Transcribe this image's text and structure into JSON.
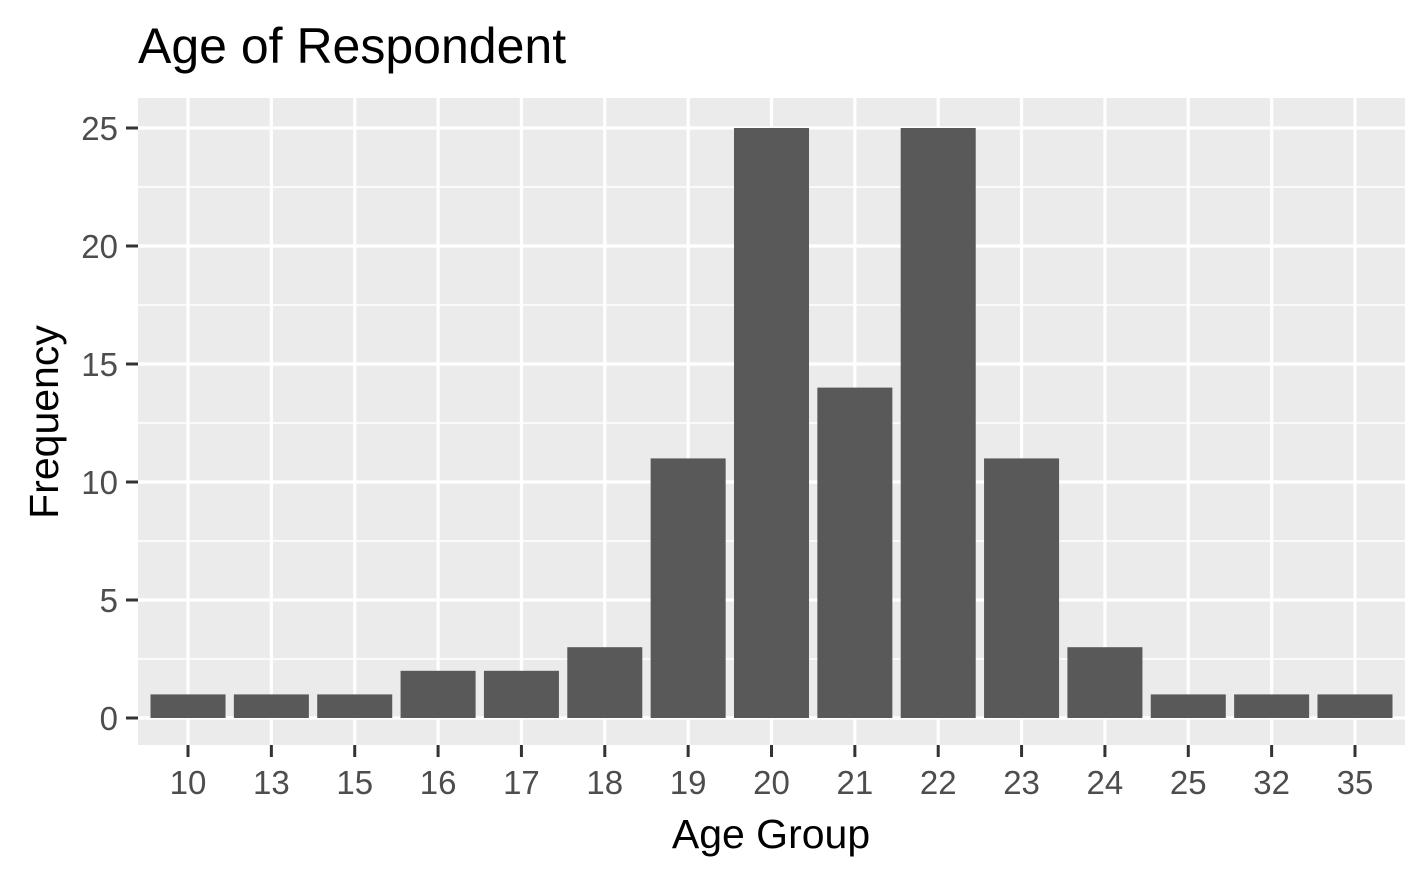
{
  "chart_data": {
    "type": "bar",
    "title": "Age of Respondent",
    "xlabel": "Age Group",
    "ylabel": "Frequency",
    "categories": [
      "10",
      "13",
      "15",
      "16",
      "17",
      "18",
      "19",
      "20",
      "21",
      "22",
      "23",
      "24",
      "25",
      "32",
      "35"
    ],
    "values": [
      1,
      1,
      1,
      2,
      2,
      3,
      11,
      25,
      14,
      25,
      11,
      3,
      1,
      1,
      1
    ],
    "ylim": [
      0,
      26.25
    ],
    "yticks": [
      0,
      5,
      10,
      15,
      20,
      25
    ],
    "grid": true,
    "legend": "none",
    "colors": {
      "bar": "#595959",
      "panel": "#ebebeb",
      "grid": "#ffffff",
      "tick": "#333333"
    }
  }
}
